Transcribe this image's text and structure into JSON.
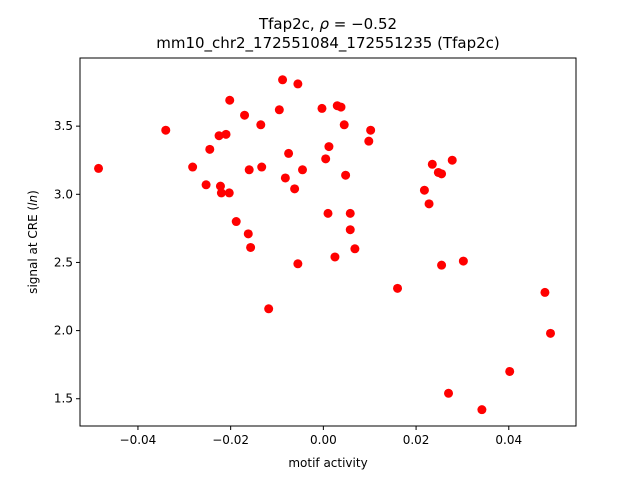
{
  "chart_data": {
    "type": "scatter",
    "title_prefix": "Tfap2c, ",
    "title_rho_symbol": "ρ",
    "title_rho_value": " = −0.52",
    "subtitle": "mm10_chr2_172551084_172551235 (Tfap2c)",
    "xlabel": "motif activity",
    "ylabel_prefix": "signal at CRE (",
    "ylabel_italic": "ln",
    "ylabel_suffix": ")",
    "xlim": [
      -0.0525,
      0.0545
    ],
    "ylim": [
      1.3,
      4.0
    ],
    "xticks": [
      -0.04,
      -0.02,
      0.0,
      0.02,
      0.04
    ],
    "xtick_labels": [
      "−0.04",
      "−0.02",
      "0.00",
      "0.02",
      "0.04"
    ],
    "yticks": [
      1.5,
      2.0,
      2.5,
      3.0,
      3.5
    ],
    "ytick_labels": [
      "1.5",
      "2.0",
      "2.5",
      "3.0",
      "3.5"
    ],
    "marker_color": "#ff0000",
    "grid": false,
    "points": [
      [
        -0.0485,
        3.19
      ],
      [
        -0.034,
        3.47
      ],
      [
        -0.0282,
        3.2
      ],
      [
        -0.0253,
        3.07
      ],
      [
        -0.0245,
        3.33
      ],
      [
        -0.0225,
        3.43
      ],
      [
        -0.0222,
        3.06
      ],
      [
        -0.022,
        3.01
      ],
      [
        -0.021,
        3.44
      ],
      [
        -0.0203,
        3.01
      ],
      [
        -0.0202,
        3.69
      ],
      [
        -0.0188,
        2.8
      ],
      [
        -0.017,
        3.58
      ],
      [
        -0.0162,
        2.71
      ],
      [
        -0.016,
        3.18
      ],
      [
        -0.0157,
        2.61
      ],
      [
        -0.0135,
        3.51
      ],
      [
        -0.0133,
        3.2
      ],
      [
        -0.0118,
        2.16
      ],
      [
        -0.0095,
        3.62
      ],
      [
        -0.0088,
        3.84
      ],
      [
        -0.0082,
        3.12
      ],
      [
        -0.0075,
        3.3
      ],
      [
        -0.0062,
        3.04
      ],
      [
        -0.0055,
        3.81
      ],
      [
        -0.0055,
        2.49
      ],
      [
        -0.0045,
        3.18
      ],
      [
        -0.0003,
        3.63
      ],
      [
        0.0005,
        3.26
      ],
      [
        0.001,
        2.86
      ],
      [
        0.0012,
        3.35
      ],
      [
        0.0025,
        2.54
      ],
      [
        0.003,
        3.65
      ],
      [
        0.0038,
        3.64
      ],
      [
        0.0045,
        3.51
      ],
      [
        0.0048,
        3.14
      ],
      [
        0.0058,
        2.86
      ],
      [
        0.0058,
        2.74
      ],
      [
        0.0068,
        2.6
      ],
      [
        0.0098,
        3.39
      ],
      [
        0.0102,
        3.47
      ],
      [
        0.016,
        2.31
      ],
      [
        0.0218,
        3.03
      ],
      [
        0.0228,
        2.93
      ],
      [
        0.0235,
        3.22
      ],
      [
        0.0248,
        3.16
      ],
      [
        0.0255,
        3.15
      ],
      [
        0.0255,
        2.48
      ],
      [
        0.027,
        1.54
      ],
      [
        0.0278,
        3.25
      ],
      [
        0.0302,
        2.51
      ],
      [
        0.0342,
        1.42
      ],
      [
        0.0402,
        1.7
      ],
      [
        0.0478,
        2.28
      ],
      [
        0.049,
        1.98
      ]
    ]
  }
}
